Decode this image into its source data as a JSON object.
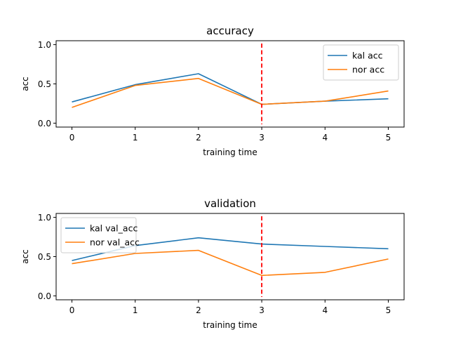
{
  "chart_data": [
    {
      "type": "line",
      "title": "accuracy",
      "xlabel": "training time",
      "ylabel": "acc",
      "x": [
        0,
        1,
        2,
        3,
        4,
        5
      ],
      "xticks": [
        "0",
        "1",
        "2",
        "3",
        "4",
        "5"
      ],
      "yticks": [
        "0.0",
        "0.5",
        "1.0"
      ],
      "xlim": [
        -0.25,
        5.25
      ],
      "ylim": [
        -0.05,
        1.05
      ],
      "grid": false,
      "legend_position": "upper right",
      "vline": {
        "x": 3,
        "color": "#ff0000",
        "style": "dashed"
      },
      "series": [
        {
          "name": "kal acc",
          "color": "#1f77b4",
          "values": [
            0.27,
            0.49,
            0.63,
            0.24,
            0.28,
            0.31
          ]
        },
        {
          "name": "nor acc",
          "color": "#ff7f0e",
          "values": [
            0.2,
            0.48,
            0.57,
            0.24,
            0.28,
            0.41
          ]
        }
      ]
    },
    {
      "type": "line",
      "title": "validation",
      "xlabel": "training time",
      "ylabel": "acc",
      "x": [
        0,
        1,
        2,
        3,
        4,
        5
      ],
      "xticks": [
        "0",
        "1",
        "2",
        "3",
        "4",
        "5"
      ],
      "yticks": [
        "0.0",
        "0.5",
        "1.0"
      ],
      "xlim": [
        -0.25,
        5.25
      ],
      "ylim": [
        -0.05,
        1.05
      ],
      "grid": false,
      "legend_position": "upper left",
      "vline": {
        "x": 3,
        "color": "#ff0000",
        "style": "dashed"
      },
      "series": [
        {
          "name": "kal val_acc",
          "color": "#1f77b4",
          "values": [
            0.45,
            0.64,
            0.74,
            0.66,
            0.63,
            0.6
          ]
        },
        {
          "name": "nor val_acc",
          "color": "#ff7f0e",
          "values": [
            0.41,
            0.54,
            0.58,
            0.26,
            0.3,
            0.47
          ]
        }
      ]
    }
  ]
}
